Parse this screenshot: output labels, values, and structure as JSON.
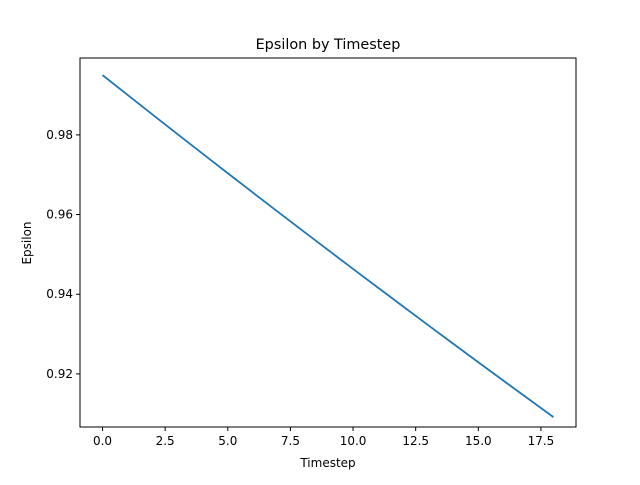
{
  "chart_data": {
    "type": "line",
    "title": "Epsilon by Timestep",
    "xlabel": "Timestep",
    "ylabel": "Epsilon",
    "xlim": [
      -0.9,
      18.9
    ],
    "ylim": [
      0.90667,
      0.9993
    ],
    "x_ticks": [
      0.0,
      2.5,
      5.0,
      7.5,
      10.0,
      12.5,
      15.0,
      17.5
    ],
    "x_tick_labels": [
      "0.0",
      "2.5",
      "5.0",
      "7.5",
      "10.0",
      "12.5",
      "15.0",
      "17.5"
    ],
    "y_ticks": [
      0.92,
      0.94,
      0.96,
      0.98
    ],
    "y_tick_labels": [
      "0.92",
      "0.94",
      "0.96",
      "0.98"
    ],
    "grid": false,
    "legend": "none",
    "colors": {
      "series": "#1f77b4"
    },
    "series": [
      {
        "x": [
          0,
          1,
          2,
          3,
          4,
          5,
          6,
          7,
          8,
          9,
          10,
          11,
          12,
          13,
          14,
          15,
          16,
          17,
          18
        ],
        "values": [
          0.995,
          0.990025,
          0.985075,
          0.98015,
          0.975249,
          0.970373,
          0.96552,
          0.960693,
          0.95589,
          0.95111,
          0.946355,
          0.941623,
          0.936915,
          0.93223,
          0.927569,
          0.922931,
          0.918316,
          0.913725,
          0.909156
        ]
      }
    ]
  }
}
